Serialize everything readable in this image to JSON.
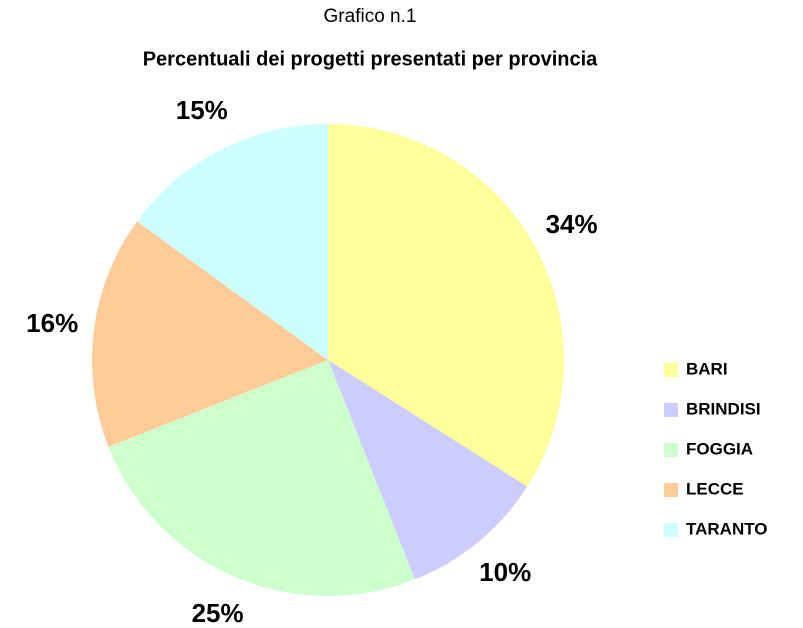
{
  "chart_data": {
    "type": "pie",
    "subtitle": "Grafico n.1",
    "title": "Percentuali dei progetti presentati per provincia",
    "categories": [
      "BARI",
      "BRINDISI",
      "FOGGIA",
      "LECCE",
      "TARANTO"
    ],
    "values": [
      34,
      10,
      25,
      16,
      15
    ],
    "value_labels": [
      "34%",
      "10%",
      "25%",
      "16%",
      "15%"
    ],
    "colors": [
      "#ffff99",
      "#ccccff",
      "#ccffcc",
      "#ffcc99",
      "#ccffff"
    ],
    "legend": "right"
  }
}
